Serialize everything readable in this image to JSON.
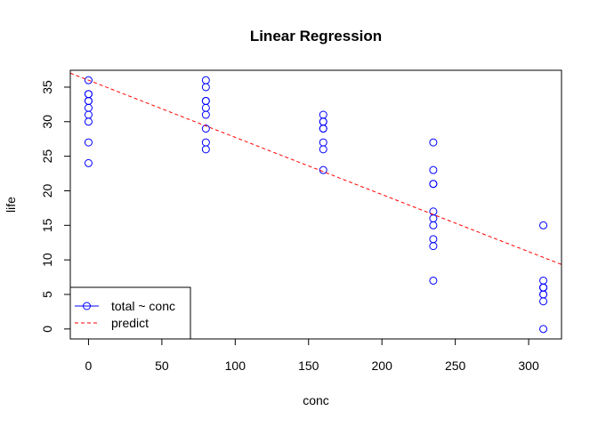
{
  "chart_data": {
    "type": "scatter",
    "title": "Linear Regression",
    "xlabel": "conc",
    "ylabel": "life",
    "xlim": [
      -12.4,
      322.4
    ],
    "ylim": [
      -1.44,
      37.44
    ],
    "xticks": [
      0,
      50,
      100,
      150,
      200,
      250,
      300
    ],
    "yticks": [
      0,
      5,
      10,
      15,
      20,
      25,
      30,
      35
    ],
    "grid": false,
    "legend_position": "bottom-left",
    "series": [
      {
        "name": "total ~ conc",
        "kind": "points",
        "color": "#0000ff",
        "points": [
          [
            0,
            36
          ],
          [
            0,
            34
          ],
          [
            0,
            34
          ],
          [
            0,
            33
          ],
          [
            0,
            33
          ],
          [
            0,
            32
          ],
          [
            0,
            31
          ],
          [
            0,
            30
          ],
          [
            0,
            27
          ],
          [
            0,
            24
          ],
          [
            80,
            36
          ],
          [
            80,
            35
          ],
          [
            80,
            33
          ],
          [
            80,
            33
          ],
          [
            80,
            32
          ],
          [
            80,
            31
          ],
          [
            80,
            29
          ],
          [
            80,
            27
          ],
          [
            80,
            26
          ],
          [
            160,
            31
          ],
          [
            160,
            30
          ],
          [
            160,
            30
          ],
          [
            160,
            29
          ],
          [
            160,
            29
          ],
          [
            160,
            27
          ],
          [
            160,
            26
          ],
          [
            160,
            23
          ],
          [
            235,
            27
          ],
          [
            235,
            23
          ],
          [
            235,
            21
          ],
          [
            235,
            21
          ],
          [
            235,
            17
          ],
          [
            235,
            16
          ],
          [
            235,
            15
          ],
          [
            235,
            13
          ],
          [
            235,
            12
          ],
          [
            235,
            7
          ],
          [
            310,
            15
          ],
          [
            310,
            7
          ],
          [
            310,
            6
          ],
          [
            310,
            6
          ],
          [
            310,
            6
          ],
          [
            310,
            5
          ],
          [
            310,
            5
          ],
          [
            310,
            4
          ],
          [
            310,
            0
          ]
        ]
      },
      {
        "name": "predict",
        "kind": "line",
        "color": "#ff0000",
        "dash": "dashed",
        "intercept": 36.0,
        "slope": -0.0827
      }
    ]
  }
}
